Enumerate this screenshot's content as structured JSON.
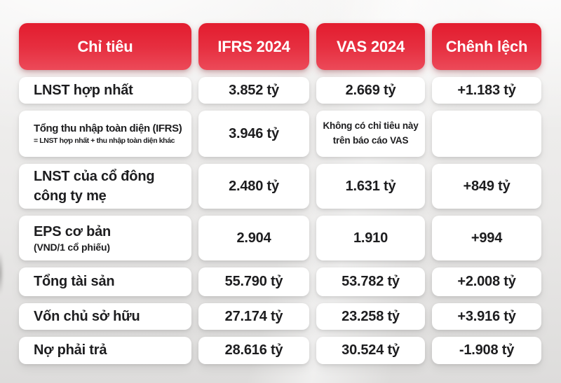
{
  "table": {
    "headers": {
      "indicator": "Chỉ tiêu",
      "ifrs": "IFRS 2024",
      "vas": "VAS 2024",
      "diff": "Chênh lệch"
    },
    "rows": [
      {
        "label": "LNST hợp nhất",
        "ifrs": "3.852 tỷ",
        "vas": "2.669 tỷ",
        "diff": "+1.183 tỷ"
      },
      {
        "label": "Tổng thu nhập toàn diện (IFRS)",
        "sub": "= LNST hợp nhất + thu nhập toàn diện khác",
        "ifrs": "3.946 tỷ",
        "vas": "Không có chỉ tiêu này\ntrên báo cáo VAS",
        "diff": ""
      },
      {
        "label": "LNST của cổ đông\ncông ty mẹ",
        "ifrs": "2.480 tỷ",
        "vas": "1.631 tỷ",
        "diff": "+849 tỷ"
      },
      {
        "label": "EPS cơ bản",
        "sub": "(VND/1 cổ phiếu)",
        "ifrs": "2.904",
        "vas": "1.910",
        "diff": "+994"
      },
      {
        "label": "Tổng tài sản",
        "ifrs": "55.790 tỷ",
        "vas": "53.782 tỷ",
        "diff": "+2.008 tỷ"
      },
      {
        "label": "Vốn chủ sở hữu",
        "ifrs": "27.174 tỷ",
        "vas": "23.258 tỷ",
        "diff": "+3.916 tỷ"
      },
      {
        "label": "Nợ phải trả",
        "ifrs": "28.616 tỷ",
        "vas": "30.524 tỷ",
        "diff": "-1.908 tỷ"
      }
    ]
  },
  "colors": {
    "header_red_top": "#e31c2e",
    "header_red_bottom": "#ec4a59",
    "cell_background": "#ffffff",
    "text": "#1d1d1f",
    "page_background": "#e8e7e6"
  },
  "chart_data": {
    "type": "table",
    "columns": [
      "Chỉ tiêu",
      "IFRS 2024",
      "VAS 2024",
      "Chênh lệch"
    ],
    "rows": [
      [
        "LNST hợp nhất",
        "3.852 tỷ",
        "2.669 tỷ",
        "+1.183 tỷ"
      ],
      [
        "Tổng thu nhập toàn diện (IFRS) = LNST hợp nhất + thu nhập toàn diện khác",
        "3.946 tỷ",
        "Không có chỉ tiêu này trên báo cáo VAS",
        ""
      ],
      [
        "LNST của cổ đông công ty mẹ",
        "2.480 tỷ",
        "1.631 tỷ",
        "+849 tỷ"
      ],
      [
        "EPS cơ bản (VND/1 cổ phiếu)",
        "2.904",
        "1.910",
        "+994"
      ],
      [
        "Tổng tài sản",
        "55.790 tỷ",
        "53.782 tỷ",
        "+2.008 tỷ"
      ],
      [
        "Vốn chủ sở hữu",
        "27.174 tỷ",
        "23.258 tỷ",
        "+3.916 tỷ"
      ],
      [
        "Nợ phải trả",
        "28.616 tỷ",
        "30.524 tỷ",
        "-1.908 tỷ"
      ]
    ]
  }
}
